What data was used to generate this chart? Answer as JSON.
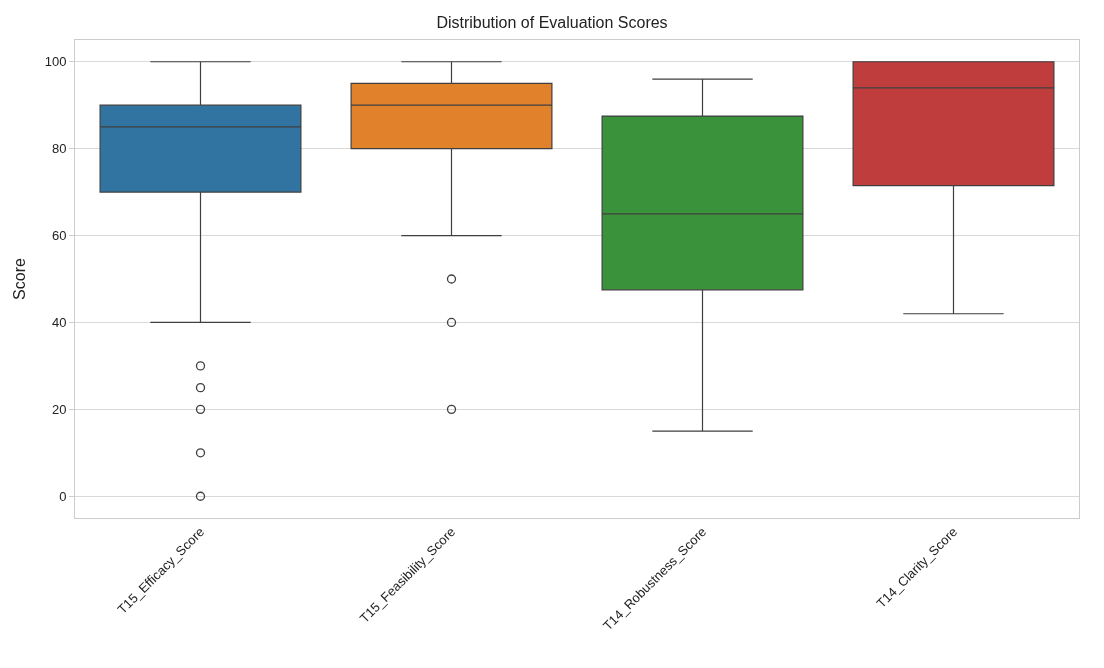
{
  "chart_data": {
    "type": "box",
    "title": "Distribution of Evaluation Scores",
    "ylabel": "Score",
    "categories": [
      "T15_Efficacy_Score",
      "T15_Feasibility_Score",
      "T14_Robustness_Score",
      "T14_Clarity_Score"
    ],
    "colors": [
      "#3274a1",
      "#e1812c",
      "#3a923a",
      "#c03d3e"
    ],
    "boxes": [
      {
        "low": 40,
        "q1": 70,
        "median": 85,
        "q3": 90,
        "high": 100,
        "outliers": [
          30,
          25,
          20,
          10,
          0
        ]
      },
      {
        "low": 60,
        "q1": 80,
        "median": 90,
        "q3": 95,
        "high": 100,
        "outliers": [
          50,
          40,
          20
        ]
      },
      {
        "low": 15,
        "q1": 47.5,
        "median": 65,
        "q3": 87.5,
        "high": 96
      },
      {
        "low": 42,
        "q1": 71.5,
        "median": 94,
        "q3": 100,
        "high": 100
      }
    ],
    "ylim": [
      -5,
      105
    ],
    "yticks": [
      0,
      20,
      40,
      60,
      80,
      100
    ],
    "grid": "y"
  }
}
